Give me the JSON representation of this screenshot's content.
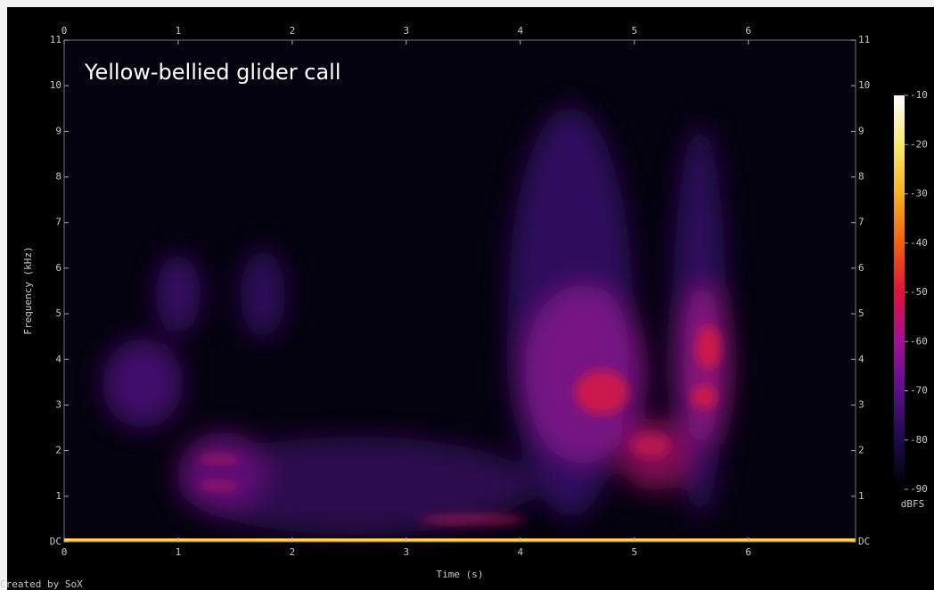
{
  "chart_data": {
    "type": "spectrogram",
    "annotation": "Yellow-bellied glider call",
    "x_label": "Time (s)",
    "y_label": "Frequency (kHz)",
    "xlim": [
      0,
      6.94
    ],
    "xticks": [
      0,
      1,
      2,
      3,
      4,
      5,
      6
    ],
    "ylim": [
      0,
      11
    ],
    "yticks": [
      {
        "value": 0,
        "label": "DC"
      },
      1,
      2,
      3,
      4,
      5,
      6,
      7,
      8,
      9,
      10,
      11
    ],
    "colorbar": {
      "lim": [
        -90,
        -10
      ],
      "ticks": [
        -10,
        -20,
        -30,
        -40,
        -50,
        -60,
        -70,
        -80,
        -90
      ],
      "label": "dBFS",
      "colors": [
        "#000000",
        "#1a0a4a",
        "#5a0f8a",
        "#a0109a",
        "#e0103a",
        "#f06010",
        "#f8b020",
        "#fbe870",
        "#ffffff"
      ]
    },
    "credit": "Created by SoX"
  }
}
